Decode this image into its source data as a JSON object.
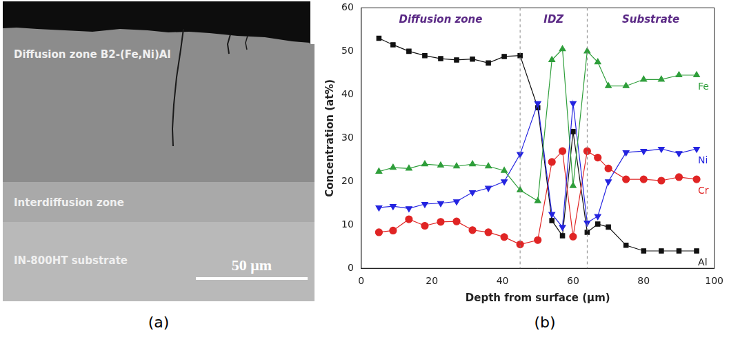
{
  "image_panel": {
    "label": "(a)",
    "regions": [
      "Diffusion zone B2-(Fe,Ni)Al",
      "Interdiffusion zone",
      "IN-800HT substrate"
    ],
    "scale_bar": "50 μm"
  },
  "chart_data": {
    "label": "(b)",
    "type": "line",
    "x_label": "Depth from surface (μm)",
    "y_label": "Concentration (at%)",
    "xlim": [
      0,
      100
    ],
    "xticks": [
      0,
      20,
      40,
      60,
      80,
      100
    ],
    "ylim": [
      0,
      60
    ],
    "yticks": [
      0,
      10,
      20,
      30,
      40,
      50,
      60
    ],
    "grid": false,
    "annotations": [
      "Diffusion zone",
      "IDZ",
      "Substrate"
    ],
    "zone_boundaries": [
      45,
      64
    ],
    "x": [
      5,
      9,
      13.5,
      18,
      22.5,
      27,
      31.5,
      36,
      40.5,
      45,
      50,
      54,
      57,
      60,
      64,
      67,
      70,
      75,
      80,
      85,
      90,
      95
    ],
    "series": [
      {
        "name": "Fe",
        "color": "#2e9e3a",
        "marker": "triangle",
        "line_style": "solid",
        "values": [
          22.3,
          23.2,
          23,
          24,
          23.7,
          23.5,
          24,
          23.5,
          22.5,
          18,
          15.5,
          48,
          50.5,
          19,
          50,
          47.5,
          42,
          42,
          43.5,
          43.5,
          44.5,
          44.5
        ]
      },
      {
        "name": "Ni",
        "color": "#2424e0",
        "marker": "triangle_down",
        "line_style": "solid",
        "values": [
          14,
          14.3,
          13.8,
          14.8,
          15,
          15.4,
          17.5,
          18.5,
          20,
          26.3,
          38,
          12.5,
          9.5,
          38,
          10.5,
          12,
          20,
          26.7,
          27,
          27.5,
          26.5,
          27.5
        ]
      },
      {
        "name": "Cr",
        "color": "#e02424",
        "marker": "circle",
        "line_style": "solid",
        "values": [
          8.3,
          8.7,
          11.3,
          9.8,
          10.7,
          10.8,
          8.8,
          8.3,
          7.2,
          5.5,
          6.5,
          24.5,
          27,
          7.3,
          27,
          25.5,
          23,
          20.5,
          20.5,
          20.2,
          21,
          20.5
        ]
      },
      {
        "name": "Al",
        "color": "#111111",
        "marker": "square",
        "line_style": "solid",
        "values": [
          53,
          51.5,
          50,
          49,
          48.3,
          48,
          48.2,
          47.3,
          48.8,
          49,
          37,
          11,
          7.5,
          31.5,
          8.3,
          10.2,
          9.5,
          5.3,
          4,
          4,
          4,
          4
        ]
      }
    ]
  }
}
